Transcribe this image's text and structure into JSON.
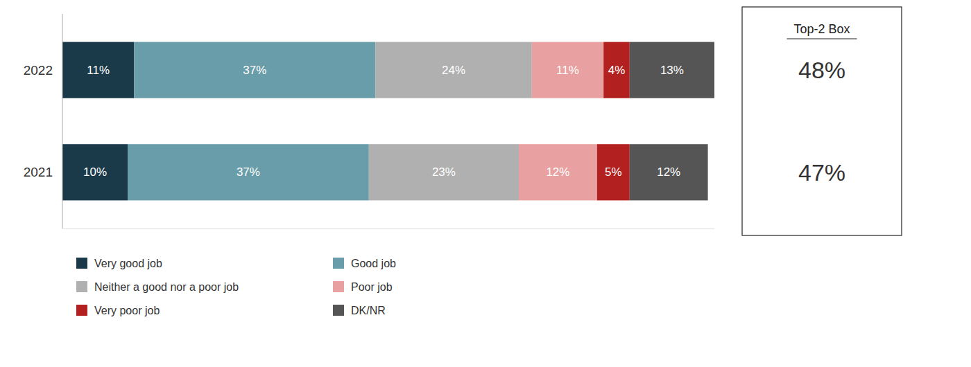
{
  "chart_data": {
    "type": "bar",
    "orientation": "horizontal",
    "stacked": true,
    "data_labels": true,
    "tick_labels": "y",
    "legend": "bottom",
    "categories": [
      "2022",
      "2021"
    ],
    "xlim": [
      0,
      100
    ],
    "series": [
      {
        "name": "Very good job",
        "color": "#1a3a4a",
        "values": [
          11,
          10
        ],
        "value_labels": [
          "11%",
          "10%"
        ]
      },
      {
        "name": "Good job",
        "color": "#6a9daa",
        "values": [
          37,
          37
        ],
        "value_labels": [
          "37%",
          "37%"
        ]
      },
      {
        "name": "Neither a good nor a poor job",
        "color": "#b0b0b0",
        "values": [
          24,
          23
        ],
        "value_labels": [
          "24%",
          "23%"
        ]
      },
      {
        "name": "Poor job",
        "color": "#e8a0a0",
        "values": [
          11,
          12
        ],
        "value_labels": [
          "11%",
          "12%"
        ]
      },
      {
        "name": "Very poor job",
        "color": "#b22020",
        "values": [
          4,
          5
        ],
        "value_labels": [
          "4%",
          "5%"
        ]
      },
      {
        "name": "DK/NR",
        "color": "#555555",
        "values": [
          13,
          12
        ],
        "value_labels": [
          "13%",
          "12%"
        ]
      }
    ],
    "annotations": [
      {
        "text": "Top-2 Box"
      },
      {
        "text": "48%",
        "category": "2022"
      },
      {
        "text": "47%",
        "category": "2021"
      }
    ]
  }
}
